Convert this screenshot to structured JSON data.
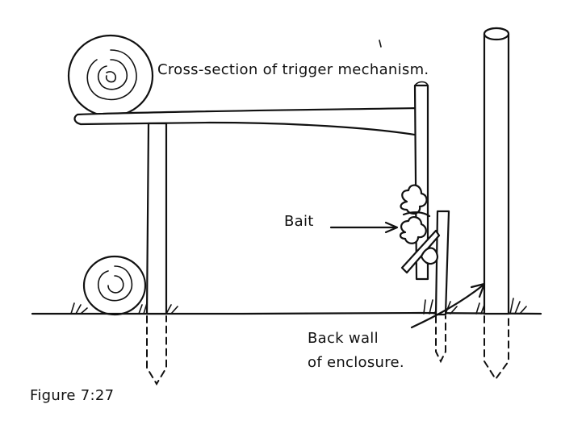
{
  "labels": {
    "title": "Cross-section of trigger mechanism.",
    "bait": "Bait",
    "back_wall_line1": "Back wall",
    "back_wall_line2": "of enclosure.",
    "figure": "Figure 7:27"
  },
  "colors": {
    "ink": "#111111",
    "paper": "#ffffff"
  }
}
